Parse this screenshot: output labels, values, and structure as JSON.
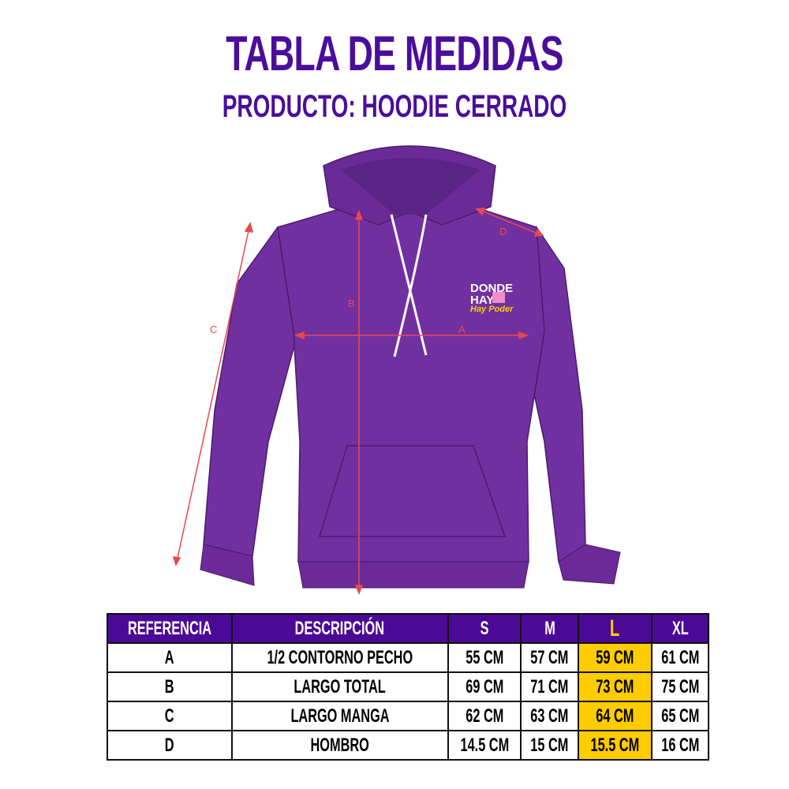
{
  "title": "TABLA DE MEDIDAS",
  "subtitle": "PRODUCTO: HOODIE CERRADO",
  "colors": {
    "title": "#4b0d9c",
    "header_bg": "#4b0a96",
    "hoodie": "#7130a0",
    "highlight": "#ffcc00",
    "measure_lines": "#e8494f"
  },
  "diagram": {
    "labels": {
      "a": "A",
      "b": "B",
      "c": "C",
      "d": "D"
    },
    "logo": {
      "line1": "DONDE",
      "line2": "HAY",
      "line3": "Hay Poder"
    }
  },
  "table": {
    "headers": [
      "REFERENCIA",
      "DESCRIPCIÓN",
      "S",
      "M",
      "L",
      "XL"
    ],
    "highlighted_size": "L",
    "rows": [
      {
        "ref": "A",
        "desc": "1/2 CONTORNO PECHO",
        "s": "55 CM",
        "m": "57 CM",
        "l": "59 CM",
        "xl": "61 CM"
      },
      {
        "ref": "B",
        "desc": "LARGO TOTAL",
        "s": "69 CM",
        "m": "71 CM",
        "l": "73 CM",
        "xl": "75 CM"
      },
      {
        "ref": "C",
        "desc": "LARGO MANGA",
        "s": "62 CM",
        "m": "63 CM",
        "l": "64 CM",
        "xl": "65 CM"
      },
      {
        "ref": "D",
        "desc": "HOMBRO",
        "s": "14.5 CM",
        "m": "15 CM",
        "l": "15.5 CM",
        "xl": "16 CM"
      }
    ]
  }
}
